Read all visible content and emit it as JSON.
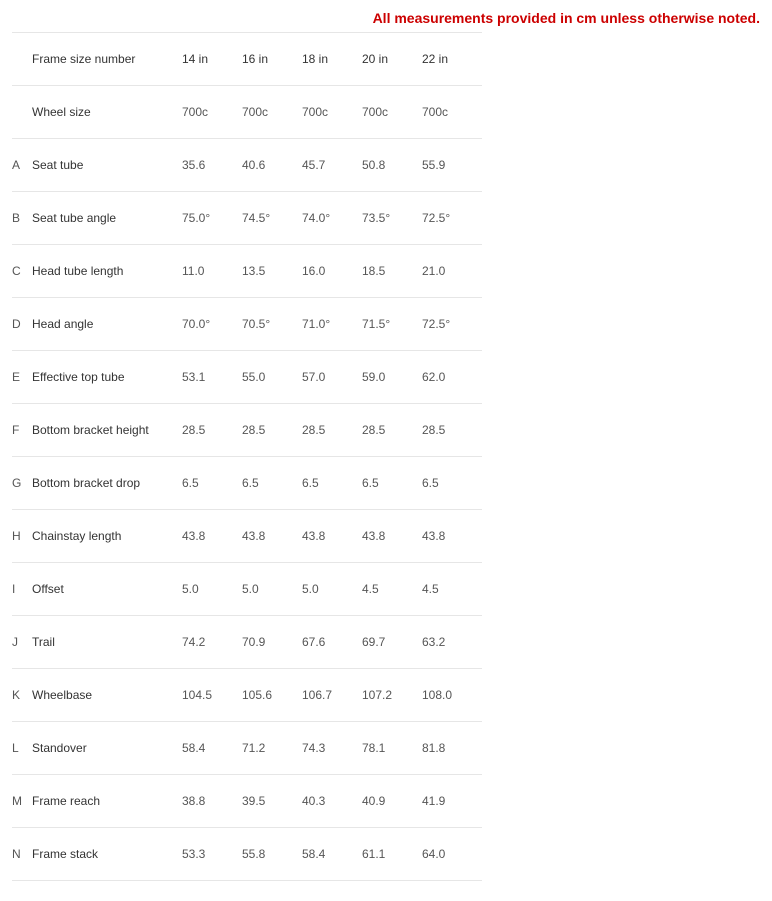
{
  "note": "All measurements provided in cm unless otherwise noted.",
  "note_color": "#cc0000",
  "border_color": "#e6e6e6",
  "text_color": "#4a4a4a",
  "font_size_note": 14,
  "font_size_cells": 12,
  "sizes": [
    "14 in",
    "16 in",
    "18 in",
    "20 in",
    "22 in"
  ],
  "rows": [
    {
      "letter": "",
      "label": "Frame size number",
      "values": [
        "14 in",
        "16 in",
        "18 in",
        "20 in",
        "22 in"
      ]
    },
    {
      "letter": "",
      "label": "Wheel size",
      "values": [
        "700c",
        "700c",
        "700c",
        "700c",
        "700c"
      ]
    },
    {
      "letter": "A",
      "label": "Seat tube",
      "values": [
        "35.6",
        "40.6",
        "45.7",
        "50.8",
        "55.9"
      ]
    },
    {
      "letter": "B",
      "label": "Seat tube angle",
      "values": [
        "75.0°",
        "74.5°",
        "74.0°",
        "73.5°",
        "72.5°"
      ]
    },
    {
      "letter": "C",
      "label": "Head tube length",
      "values": [
        "11.0",
        "13.5",
        "16.0",
        "18.5",
        "21.0"
      ]
    },
    {
      "letter": "D",
      "label": "Head angle",
      "values": [
        "70.0°",
        "70.5°",
        "71.0°",
        "71.5°",
        "72.5°"
      ]
    },
    {
      "letter": "E",
      "label": "Effective top tube",
      "values": [
        "53.1",
        "55.0",
        "57.0",
        "59.0",
        "62.0"
      ]
    },
    {
      "letter": "F",
      "label": "Bottom bracket height",
      "values": [
        "28.5",
        "28.5",
        "28.5",
        "28.5",
        "28.5"
      ]
    },
    {
      "letter": "G",
      "label": "Bottom bracket drop",
      "values": [
        "6.5",
        "6.5",
        "6.5",
        "6.5",
        "6.5"
      ]
    },
    {
      "letter": "H",
      "label": "Chainstay length",
      "values": [
        "43.8",
        "43.8",
        "43.8",
        "43.8",
        "43.8"
      ]
    },
    {
      "letter": "I",
      "label": "Offset",
      "values": [
        "5.0",
        "5.0",
        "5.0",
        "4.5",
        "4.5"
      ]
    },
    {
      "letter": "J",
      "label": "Trail",
      "values": [
        "74.2",
        "70.9",
        "67.6",
        "69.7",
        "63.2"
      ]
    },
    {
      "letter": "K",
      "label": "Wheelbase",
      "values": [
        "104.5",
        "105.6",
        "106.7",
        "107.2",
        "108.0"
      ]
    },
    {
      "letter": "L",
      "label": "Standover",
      "values": [
        "58.4",
        "71.2",
        "74.3",
        "78.1",
        "81.8"
      ]
    },
    {
      "letter": "M",
      "label": "Frame reach",
      "values": [
        "38.8",
        "39.5",
        "40.3",
        "40.9",
        "41.9"
      ]
    },
    {
      "letter": "N",
      "label": "Frame stack",
      "values": [
        "53.3",
        "55.8",
        "58.4",
        "61.1",
        "64.0"
      ]
    }
  ]
}
